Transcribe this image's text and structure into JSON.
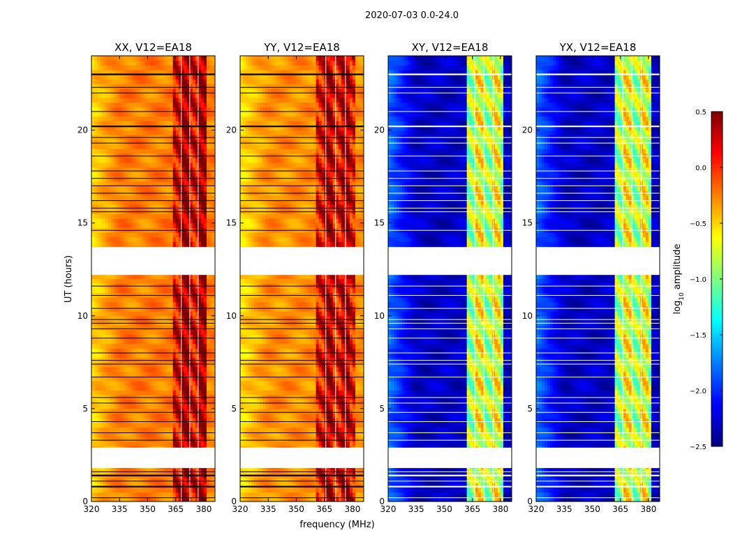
{
  "figure": {
    "suptitle": "2020-07-03 0.0-24.0",
    "xlabel": "frequency (MHz)",
    "ylabel": "UT (hours)"
  },
  "colorbar": {
    "label_prefix": "log",
    "label_sub": "10",
    "label_suffix": " amplitude",
    "vmin": -2.5,
    "vmax": 0.5,
    "ticks": [
      0.5,
      0.0,
      -0.5,
      -1.0,
      -1.5,
      -2.0,
      -2.5
    ],
    "tick_labels": [
      "0.5",
      "0.0",
      "−0.5",
      "−1.0",
      "−1.5",
      "−2.0",
      "−2.5"
    ],
    "colors": [
      "#00007f",
      "#0000ff",
      "#007fff",
      "#00ffff",
      "#7fff7f",
      "#ffff00",
      "#ff7f00",
      "#ff0000",
      "#7f0000"
    ]
  },
  "chart_data": [
    {
      "type": "heatmap",
      "title": "XX, V12=EA18",
      "xlim": [
        320,
        386
      ],
      "ylim": [
        0,
        24
      ],
      "xticks": [
        320,
        335,
        350,
        365,
        380
      ],
      "xtick_labels": [
        "320",
        "335",
        "350",
        "365",
        "380"
      ],
      "yticks": [
        0,
        5,
        10,
        15,
        20
      ],
      "ytick_labels": [
        "0",
        "5",
        "10",
        "15",
        "20"
      ],
      "baseline": -0.25,
      "rfi_band": [
        363.5,
        381.5
      ],
      "rfi_level": 0.25
    },
    {
      "type": "heatmap",
      "title": "YY, V12=EA18",
      "xlim": [
        320,
        386
      ],
      "ylim": [
        0,
        24
      ],
      "xticks": [
        320,
        335,
        350,
        365,
        380
      ],
      "xtick_labels": [
        "320",
        "335",
        "350",
        "365",
        "380"
      ],
      "yticks": [
        0,
        5,
        10,
        15,
        20
      ],
      "ytick_labels": [
        "0",
        "5",
        "10",
        "15",
        "20"
      ],
      "baseline": -0.3,
      "rfi_band": [
        360.5,
        381.5
      ],
      "rfi_level": 0.2
    },
    {
      "type": "heatmap",
      "title": "XY, V12=EA18",
      "xlim": [
        320,
        386
      ],
      "ylim": [
        0,
        24
      ],
      "xticks": [
        320,
        335,
        350,
        365,
        380
      ],
      "xtick_labels": [
        "320",
        "335",
        "350",
        "365",
        "380"
      ],
      "yticks": [
        0,
        5,
        10,
        15,
        20
      ],
      "ytick_labels": [
        "0",
        "5",
        "10",
        "15",
        "20"
      ],
      "baseline": -2.3,
      "rfi_band": [
        361.5,
        381
      ],
      "rfi_level": -0.8
    },
    {
      "type": "heatmap",
      "title": "YX, V12=EA18",
      "xlim": [
        320,
        386
      ],
      "ylim": [
        0,
        24
      ],
      "xticks": [
        320,
        335,
        350,
        365,
        380
      ],
      "xtick_labels": [
        "320",
        "335",
        "350",
        "365",
        "380"
      ],
      "yticks": [
        0,
        5,
        10,
        15,
        20
      ],
      "ytick_labels": [
        "0",
        "5",
        "10",
        "15",
        "20"
      ],
      "baseline": -2.3,
      "rfi_band": [
        361.5,
        381
      ],
      "rfi_level": -0.8
    }
  ],
  "data_gaps_ut": [
    [
      1.8,
      2.9
    ],
    [
      12.2,
      13.7
    ]
  ],
  "flag_lines_ut": [
    0.2,
    0.8,
    1.1,
    1.4,
    1.6,
    3.3,
    3.7,
    4.3,
    4.8,
    5.3,
    5.6,
    6.7,
    7.4,
    7.6,
    8.0,
    8.8,
    9.3,
    9.6,
    9.8,
    10.4,
    11.1,
    11.6,
    14.6,
    15.6,
    15.8,
    16.2,
    16.6,
    17.0,
    17.4,
    17.8,
    18.6,
    19.3,
    19.6,
    20.2,
    21.0,
    22.0,
    22.3,
    23.0
  ],
  "thick_flag_lines_ut": [
    0.8,
    1.4,
    20.2,
    23.0
  ]
}
